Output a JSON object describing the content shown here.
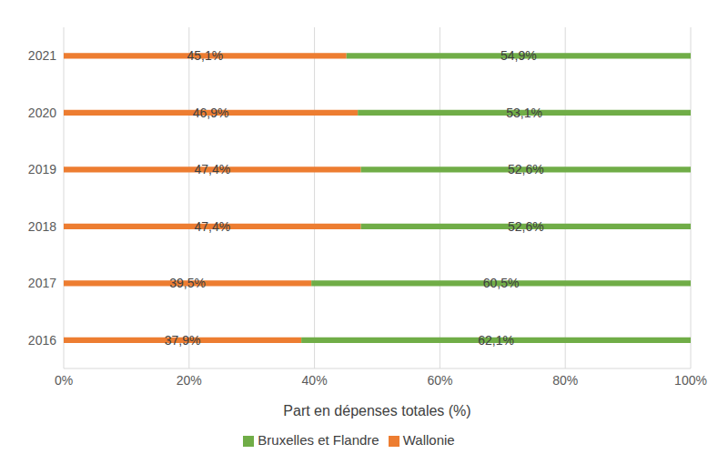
{
  "chart_data": {
    "type": "bar",
    "orientation": "horizontal",
    "stacked": true,
    "xlabel": "Part en dépenses totales (%)",
    "categories": [
      "2016",
      "2017",
      "2018",
      "2019",
      "2020",
      "2021"
    ],
    "series": [
      {
        "name": "Wallonie",
        "color": "#ed7d31",
        "values": [
          37.9,
          39.5,
          47.4,
          47.4,
          46.9,
          45.1
        ],
        "value_labels": [
          "37,9%",
          "39,5%",
          "47,4%",
          "47,4%",
          "46,9%",
          "45,1%"
        ]
      },
      {
        "name": "Bruxelles et Flandre",
        "color": "#70ad47",
        "values": [
          62.1,
          60.5,
          52.6,
          52.6,
          53.1,
          54.9
        ],
        "value_labels": [
          "62,1%",
          "60,5%",
          "52,6%",
          "52,6%",
          "53,1%",
          "54,9%"
        ]
      }
    ],
    "xlim": [
      0,
      100
    ],
    "xticks": [
      {
        "value": 0,
        "label": "0%"
      },
      {
        "value": 20,
        "label": "20%"
      },
      {
        "value": 40,
        "label": "40%"
      },
      {
        "value": 60,
        "label": "60%"
      },
      {
        "value": 80,
        "label": "80%"
      },
      {
        "value": 100,
        "label": "100%"
      }
    ],
    "grid": true,
    "data_labels": true,
    "legend": "bottom"
  }
}
